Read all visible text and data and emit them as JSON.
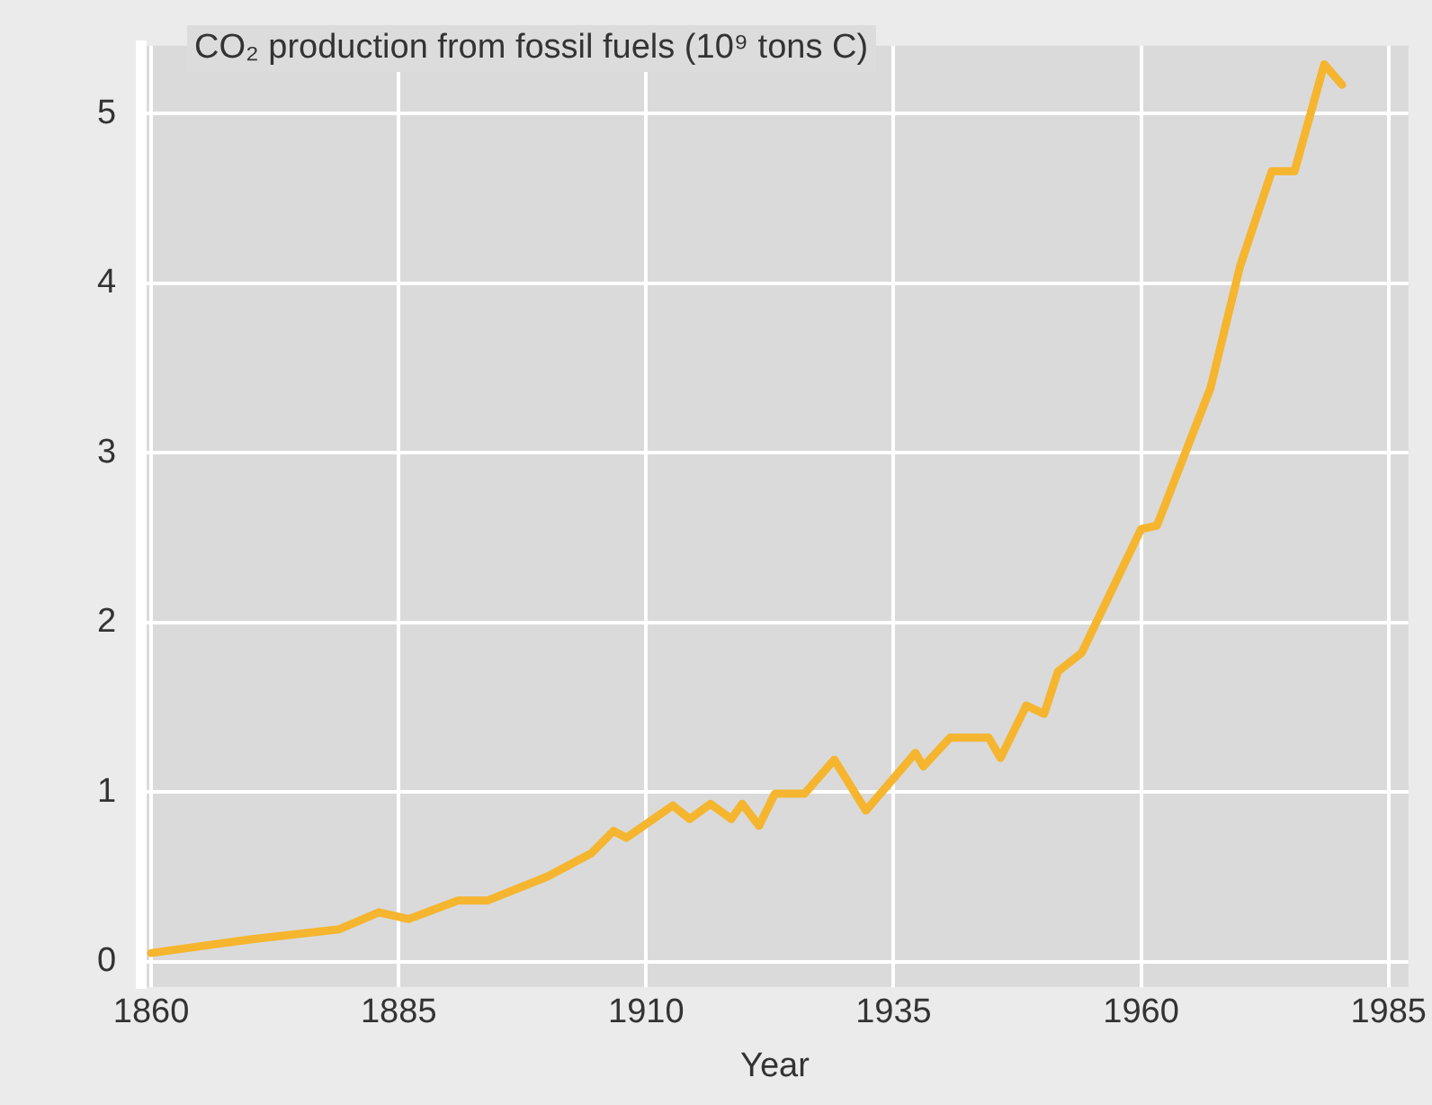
{
  "chart_data": {
    "type": "line",
    "title": "CO₂ production from fossil fuels (10⁹ tons C)",
    "xlabel": "Year",
    "x": [
      1860,
      1870,
      1879,
      1883,
      1886,
      1891,
      1894,
      1900,
      1904.5,
      1906.7,
      1908,
      1912.7,
      1914.4,
      1916.5,
      1918.6,
      1919.7,
      1921.4,
      1923,
      1926,
      1929,
      1932.2,
      1937.2,
      1938,
      1940.7,
      1944.6,
      1945.8,
      1948.4,
      1950.2,
      1951.6,
      1954,
      1960,
      1961.6,
      1967,
      1970,
      1973.2,
      1975.5,
      1978.5,
      1980.3
    ],
    "series": [
      {
        "color": "#f5b52e",
        "values": [
          0.05,
          0.13,
          0.19,
          0.29,
          0.25,
          0.36,
          0.36,
          0.5,
          0.64,
          0.77,
          0.73,
          0.92,
          0.84,
          0.93,
          0.84,
          0.93,
          0.8,
          0.99,
          0.99,
          1.19,
          0.89,
          1.23,
          1.15,
          1.32,
          1.32,
          1.2,
          1.51,
          1.46,
          1.71,
          1.82,
          2.55,
          2.57,
          3.38,
          4.1,
          4.66,
          4.66,
          5.29,
          5.17
        ]
      }
    ],
    "xlim": [
      1859,
      1987
    ],
    "xticks": [
      1860,
      1885,
      1910,
      1935,
      1960,
      1985
    ],
    "ylim": [
      -0.15,
      5.4
    ],
    "yticks": [
      0,
      1,
      2,
      3,
      4,
      5
    ],
    "grid": true,
    "legend": false,
    "marker": "none",
    "line_style": "solid"
  }
}
